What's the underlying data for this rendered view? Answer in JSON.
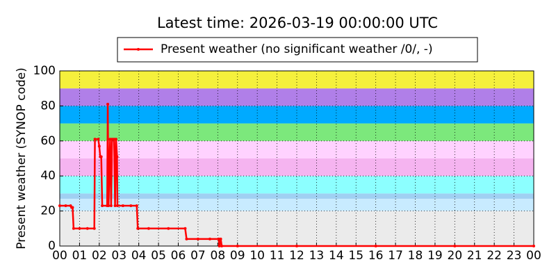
{
  "chart_data": {
    "type": "line",
    "title": "Latest time: 2026-03-19 00:00:00 UTC",
    "y_label": "Present weather (SYNOP code)",
    "xlim": [
      0,
      24
    ],
    "ylim": [
      0,
      100
    ],
    "xticks": [
      {
        "value": 0,
        "label": "00"
      },
      {
        "value": 1,
        "label": "01"
      },
      {
        "value": 2,
        "label": "02"
      },
      {
        "value": 3,
        "label": "03"
      },
      {
        "value": 4,
        "label": "04"
      },
      {
        "value": 5,
        "label": "05"
      },
      {
        "value": 6,
        "label": "06"
      },
      {
        "value": 7,
        "label": "07"
      },
      {
        "value": 8,
        "label": "08"
      },
      {
        "value": 9,
        "label": "09"
      },
      {
        "value": 10,
        "label": "10"
      },
      {
        "value": 11,
        "label": "11"
      },
      {
        "value": 12,
        "label": "12"
      },
      {
        "value": 13,
        "label": "13"
      },
      {
        "value": 14,
        "label": "14"
      },
      {
        "value": 15,
        "label": "15"
      },
      {
        "value": 16,
        "label": "16"
      },
      {
        "value": 17,
        "label": "17"
      },
      {
        "value": 18,
        "label": "18"
      },
      {
        "value": 19,
        "label": "19"
      },
      {
        "value": 20,
        "label": "20"
      },
      {
        "value": 21,
        "label": "21"
      },
      {
        "value": 22,
        "label": "22"
      },
      {
        "value": 23,
        "label": "23"
      },
      {
        "value": 24,
        "label": "00"
      }
    ],
    "yticks": [
      0,
      20,
      40,
      60,
      80,
      100
    ],
    "grid": true,
    "legend": "upper center",
    "bands": [
      {
        "from": 0,
        "to": 20,
        "color": "#ebebeb"
      },
      {
        "from": 20,
        "to": 27,
        "color": "#c8ebff"
      },
      {
        "from": 27,
        "to": 30,
        "color": "#a0d0f2"
      },
      {
        "from": 30,
        "to": 40,
        "color": "#8cffff"
      },
      {
        "from": 40,
        "to": 50,
        "color": "#f5b4f0"
      },
      {
        "from": 50,
        "to": 60,
        "color": "#ffd2ff"
      },
      {
        "from": 60,
        "to": 70,
        "color": "#7ce87c"
      },
      {
        "from": 70,
        "to": 80,
        "color": "#00aaff"
      },
      {
        "from": 80,
        "to": 90,
        "color": "#b07fe8"
      },
      {
        "from": 90,
        "to": 100,
        "color": "#f5f03c"
      }
    ],
    "x": [
      0,
      0.3,
      0.55,
      0.6,
      0.65,
      0.7,
      1.0,
      1.4,
      1.75,
      1.78,
      1.95,
      2.0,
      2.05,
      2.1,
      2.15,
      2.4,
      2.43,
      2.47,
      2.55,
      2.6,
      2.65,
      2.75,
      2.8,
      2.85,
      2.9,
      2.92,
      3.2,
      3.6,
      3.9,
      3.95,
      4.5,
      5.5,
      6.35,
      6.42,
      7.0,
      7.6,
      8.05,
      8.08,
      8.15,
      8.2,
      9,
      12,
      16,
      20,
      24
    ],
    "series": [
      {
        "name": "Present weather (no significant weather /0/, -)",
        "color": "#ff0000",
        "values": [
          23,
          23,
          23,
          22,
          22,
          10,
          10,
          10,
          10,
          61,
          61,
          57,
          51,
          51,
          23,
          23,
          81,
          23,
          61,
          23,
          61,
          61,
          23,
          61,
          51,
          23,
          23,
          23,
          23,
          10,
          10,
          10,
          10,
          4,
          4,
          4,
          4,
          0,
          4,
          0,
          0,
          0,
          0,
          0,
          0
        ]
      }
    ]
  }
}
